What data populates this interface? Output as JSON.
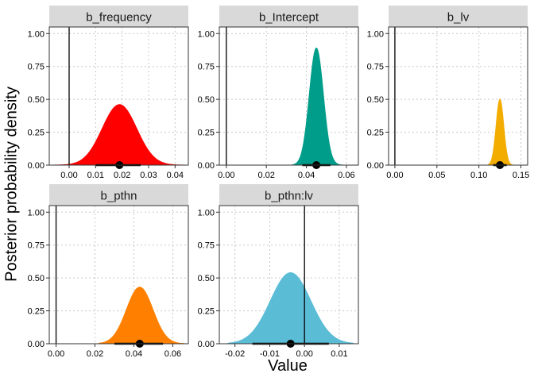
{
  "labels": {
    "ylabel": "Posterior probability density",
    "xlabel": "Value"
  },
  "chart_data": [
    {
      "type": "area",
      "title": "b_frequency",
      "color": "#FF0000",
      "xlim": [
        -0.0075,
        0.045
      ],
      "xticks": [
        0.0,
        0.01,
        0.02,
        0.03,
        0.04
      ],
      "xticklabels": [
        "0.00",
        "0.01",
        "0.02",
        "0.03",
        "0.04"
      ],
      "ylim": [
        0,
        1.05
      ],
      "yticks": [
        0,
        0.25,
        0.5,
        0.75,
        1.0
      ],
      "yticklabels": [
        "0.00",
        "0.25",
        "0.50",
        "0.75",
        "1.00"
      ],
      "vline": 0,
      "density": {
        "center": 0.019,
        "sd": 0.0065,
        "peak": 0.46,
        "from": -0.006,
        "to": 0.043
      },
      "point_estimate": 0.019,
      "interval": [
        0.01,
        0.027
      ]
    },
    {
      "type": "area",
      "title": "b_Intercept",
      "color": "#009E8A",
      "xlim": [
        -0.0035,
        0.066
      ],
      "xticks": [
        0.0,
        0.02,
        0.04,
        0.06
      ],
      "xticklabels": [
        "0.00",
        "0.02",
        "0.04",
        "0.06"
      ],
      "ylim": [
        0,
        1.05
      ],
      "yticks": [
        0,
        0.25,
        0.5,
        0.75,
        1.0
      ],
      "yticklabels": [
        "0.00",
        "0.25",
        "0.50",
        "0.75",
        "1.00"
      ],
      "vline": 0,
      "density": {
        "center": 0.045,
        "sd": 0.0035,
        "peak": 0.89,
        "from": 0.033,
        "to": 0.058
      },
      "point_estimate": 0.045,
      "interval": [
        0.038,
        0.052
      ]
    },
    {
      "type": "area",
      "title": "b_lv",
      "color": "#F2AD00",
      "xlim": [
        -0.0075,
        0.158
      ],
      "xticks": [
        0.0,
        0.05,
        0.1,
        0.15
      ],
      "xticklabels": [
        "0.00",
        "0.05",
        "0.10",
        "0.15"
      ],
      "ylim": [
        0,
        1.05
      ],
      "yticks": [
        0,
        0.25,
        0.5,
        0.75,
        1.0
      ],
      "yticklabels": [
        "0.00",
        "0.25",
        "0.50",
        "0.75",
        "1.00"
      ],
      "vline": 0,
      "density": {
        "center": 0.125,
        "sd": 0.0045,
        "peak": 0.5,
        "from": 0.111,
        "to": 0.14
      },
      "point_estimate": 0.125,
      "interval": [
        0.117,
        0.133
      ]
    },
    {
      "type": "area",
      "title": "b_pthn",
      "color": "#FF8000",
      "xlim": [
        -0.0035,
        0.068
      ],
      "xticks": [
        0.0,
        0.02,
        0.04,
        0.06
      ],
      "xticklabels": [
        "0.00",
        "0.02",
        "0.04",
        "0.06"
      ],
      "ylim": [
        0,
        1.05
      ],
      "yticks": [
        0,
        0.25,
        0.5,
        0.75,
        1.0
      ],
      "yticklabels": [
        "0.00",
        "0.25",
        "0.50",
        "0.75",
        "1.00"
      ],
      "vline": 0,
      "density": {
        "center": 0.043,
        "sd": 0.0068,
        "peak": 0.43,
        "from": 0.022,
        "to": 0.066
      },
      "point_estimate": 0.043,
      "interval": [
        0.03,
        0.055
      ]
    },
    {
      "type": "area",
      "title": "b_pthn:lv",
      "color": "#5BBCD6",
      "xlim": [
        -0.0245,
        0.0155
      ],
      "xticks": [
        -0.02,
        -0.01,
        0.0,
        0.01
      ],
      "xticklabels": [
        "-0.02",
        "-0.01",
        "0.00",
        "0.01"
      ],
      "ylim": [
        0,
        1.05
      ],
      "yticks": [
        0,
        0.25,
        0.5,
        0.75,
        1.0
      ],
      "yticklabels": [
        "0.00",
        "0.25",
        "0.50",
        "0.75",
        "1.00"
      ],
      "vline": 0,
      "density": {
        "center": -0.004,
        "sd": 0.0058,
        "peak": 0.54,
        "from": -0.022,
        "to": 0.014
      },
      "point_estimate": -0.004,
      "interval": [
        -0.015,
        0.007
      ]
    }
  ]
}
